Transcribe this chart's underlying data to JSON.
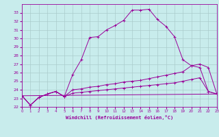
{
  "xlabel": "Windchill (Refroidissement éolien,°C)",
  "xlim": [
    0,
    23
  ],
  "ylim": [
    22,
    34
  ],
  "yticks": [
    22,
    23,
    24,
    25,
    26,
    27,
    28,
    29,
    30,
    31,
    32,
    33
  ],
  "xticks": [
    0,
    1,
    2,
    3,
    4,
    5,
    6,
    7,
    8,
    9,
    10,
    11,
    12,
    13,
    14,
    15,
    16,
    17,
    18,
    19,
    20,
    21,
    22,
    23
  ],
  "bg_color": "#c8ecec",
  "line_color": "#990099",
  "grid_color": "#aacccc",
  "line1_x": [
    0,
    1,
    2,
    3,
    4,
    5,
    6,
    7,
    8,
    9,
    10,
    11,
    12,
    13,
    14,
    15,
    16,
    17,
    18,
    19,
    20,
    21,
    22,
    23
  ],
  "line1_y": [
    23.3,
    22.2,
    23.1,
    23.5,
    23.8,
    23.2,
    25.8,
    27.5,
    30.1,
    30.2,
    31.0,
    31.5,
    32.1,
    33.3,
    33.3,
    33.4,
    32.2,
    31.4,
    30.2,
    27.5,
    26.8,
    26.6,
    23.8,
    23.5
  ],
  "line2_x": [
    0,
    1,
    2,
    3,
    4,
    5,
    6,
    7,
    8,
    9,
    10,
    11,
    12,
    13,
    14,
    15,
    16,
    17,
    18,
    19,
    20,
    21,
    22,
    23
  ],
  "line2_y": [
    23.3,
    22.2,
    23.1,
    23.5,
    23.8,
    23.2,
    24.0,
    24.1,
    24.3,
    24.4,
    24.6,
    24.7,
    24.9,
    25.0,
    25.1,
    25.3,
    25.5,
    25.7,
    25.9,
    26.1,
    26.8,
    27.0,
    26.6,
    23.5
  ],
  "line3_x": [
    0,
    1,
    2,
    3,
    4,
    5,
    6,
    7,
    8,
    9,
    10,
    11,
    12,
    13,
    14,
    15,
    16,
    17,
    18,
    19,
    20,
    21,
    22,
    23
  ],
  "line3_y": [
    23.3,
    22.2,
    23.1,
    23.5,
    23.8,
    23.2,
    23.6,
    23.7,
    23.8,
    23.9,
    24.0,
    24.1,
    24.2,
    24.3,
    24.4,
    24.5,
    24.6,
    24.7,
    24.8,
    25.0,
    25.2,
    25.4,
    23.8,
    23.5
  ],
  "line4_x": [
    0,
    23
  ],
  "line4_y": [
    23.3,
    23.5
  ]
}
